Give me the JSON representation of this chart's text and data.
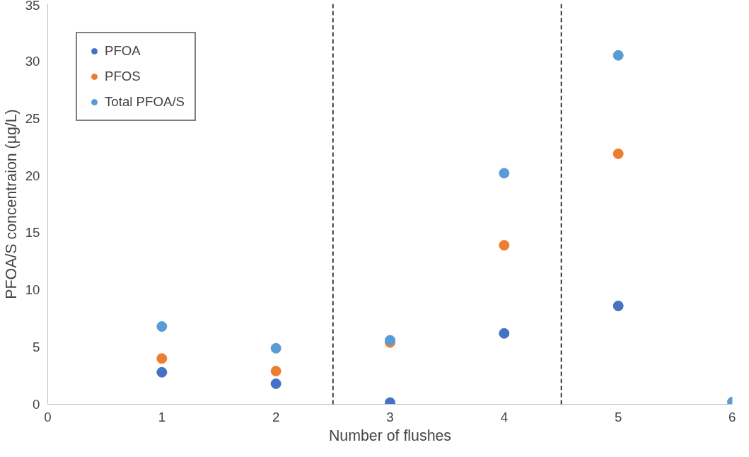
{
  "chart_data": {
    "type": "scatter",
    "xlabel": "Number of flushes",
    "ylabel": "PFOA/S concentraion (µg/L)",
    "x": [
      1,
      2,
      3,
      4,
      5,
      6
    ],
    "series": [
      {
        "name": "PFOA",
        "color": "#4472c4",
        "values": [
          2.8,
          1.8,
          0.15,
          6.2,
          8.6,
          null
        ]
      },
      {
        "name": "PFOS",
        "color": "#ed7d31",
        "values": [
          4.0,
          2.9,
          5.4,
          13.9,
          21.9,
          null
        ]
      },
      {
        "name": "Total PFOA/S",
        "color": "#5b9bd5",
        "values": [
          6.8,
          4.9,
          5.6,
          20.2,
          30.5,
          0.2
        ]
      }
    ],
    "xlim": [
      0,
      6
    ],
    "xticks": [
      0,
      1,
      2,
      3,
      4,
      5,
      6
    ],
    "ylim": [
      0,
      35
    ],
    "yticks": [
      0,
      5,
      10,
      15,
      20,
      25,
      30,
      35
    ],
    "ref_lines": [
      {
        "axis": "x",
        "value": 2.5,
        "color": "#000000",
        "line_style": "dashed"
      },
      {
        "axis": "x",
        "value": 4.5,
        "color": "#000000",
        "line_style": "dashed"
      }
    ],
    "grid": false,
    "legend": "top left",
    "marker": "circle"
  }
}
